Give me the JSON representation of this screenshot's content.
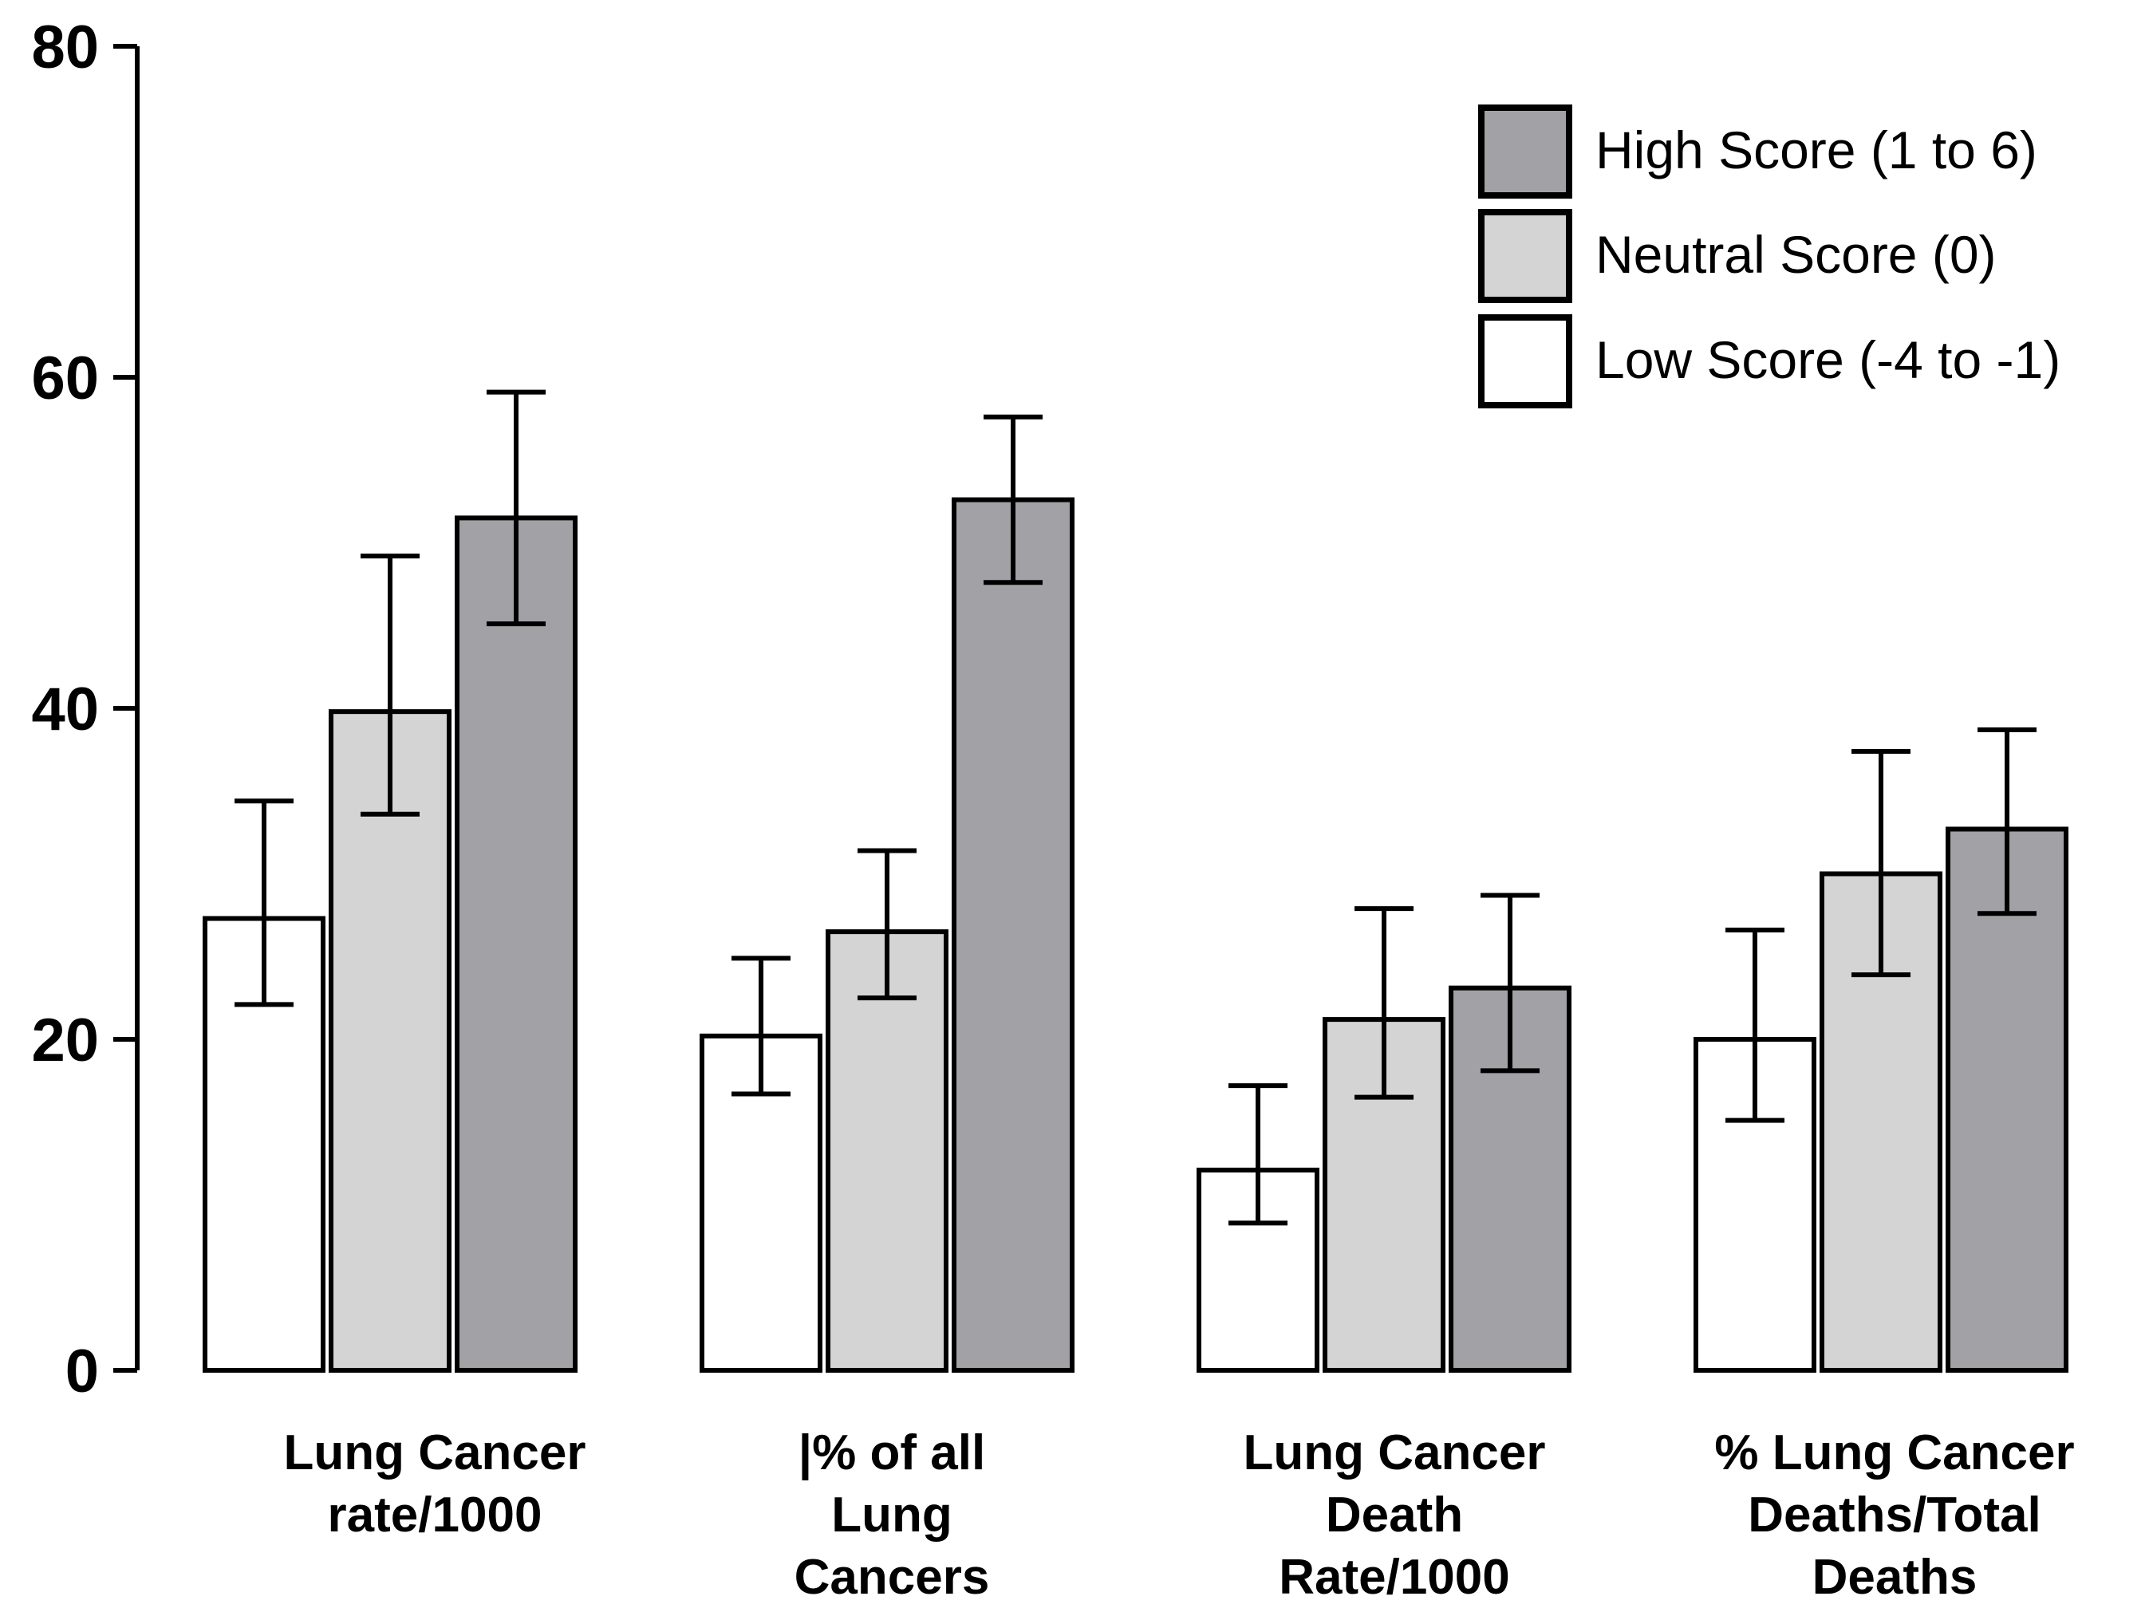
{
  "chart_data": {
    "type": "bar",
    "title": "",
    "xlabel": "",
    "ylabel": "",
    "ylim": [
      0,
      80
    ],
    "yticks": [
      0,
      20,
      40,
      60,
      80
    ],
    "grid": false,
    "legend_position": "top-right",
    "categories": [
      [
        "Lung Cancer",
        "rate/1000"
      ],
      [
        "|% of all",
        "Lung",
        "Cancers"
      ],
      [
        "Lung Cancer",
        "Death",
        "Rate/1000"
      ],
      [
        "% Lung Cancer",
        "Deaths/Total",
        "Deaths"
      ]
    ],
    "series": [
      {
        "name": "Low Score (-4 to -1)",
        "color": "#ffffff",
        "values": [
          27.3,
          20.2,
          12.1,
          20.0
        ],
        "error_low": [
          22.1,
          16.7,
          8.9,
          15.1
        ],
        "error_high": [
          34.4,
          24.9,
          17.2,
          26.6
        ]
      },
      {
        "name": "Neutral Score (0)",
        "color": "#d4d4d4",
        "values": [
          39.8,
          26.5,
          21.2,
          30.0
        ],
        "error_low": [
          33.6,
          22.5,
          16.5,
          23.9
        ],
        "error_high": [
          49.2,
          31.4,
          27.9,
          37.4
        ]
      },
      {
        "name": "High Score (1 to 6)",
        "color": "#a2a2a6",
        "values": [
          51.5,
          52.6,
          23.1,
          32.7
        ],
        "error_low": [
          45.1,
          47.6,
          18.1,
          27.6
        ],
        "error_high": [
          59.1,
          57.6,
          28.7,
          38.7
        ]
      }
    ],
    "legend_order": [
      2,
      1,
      0
    ]
  }
}
